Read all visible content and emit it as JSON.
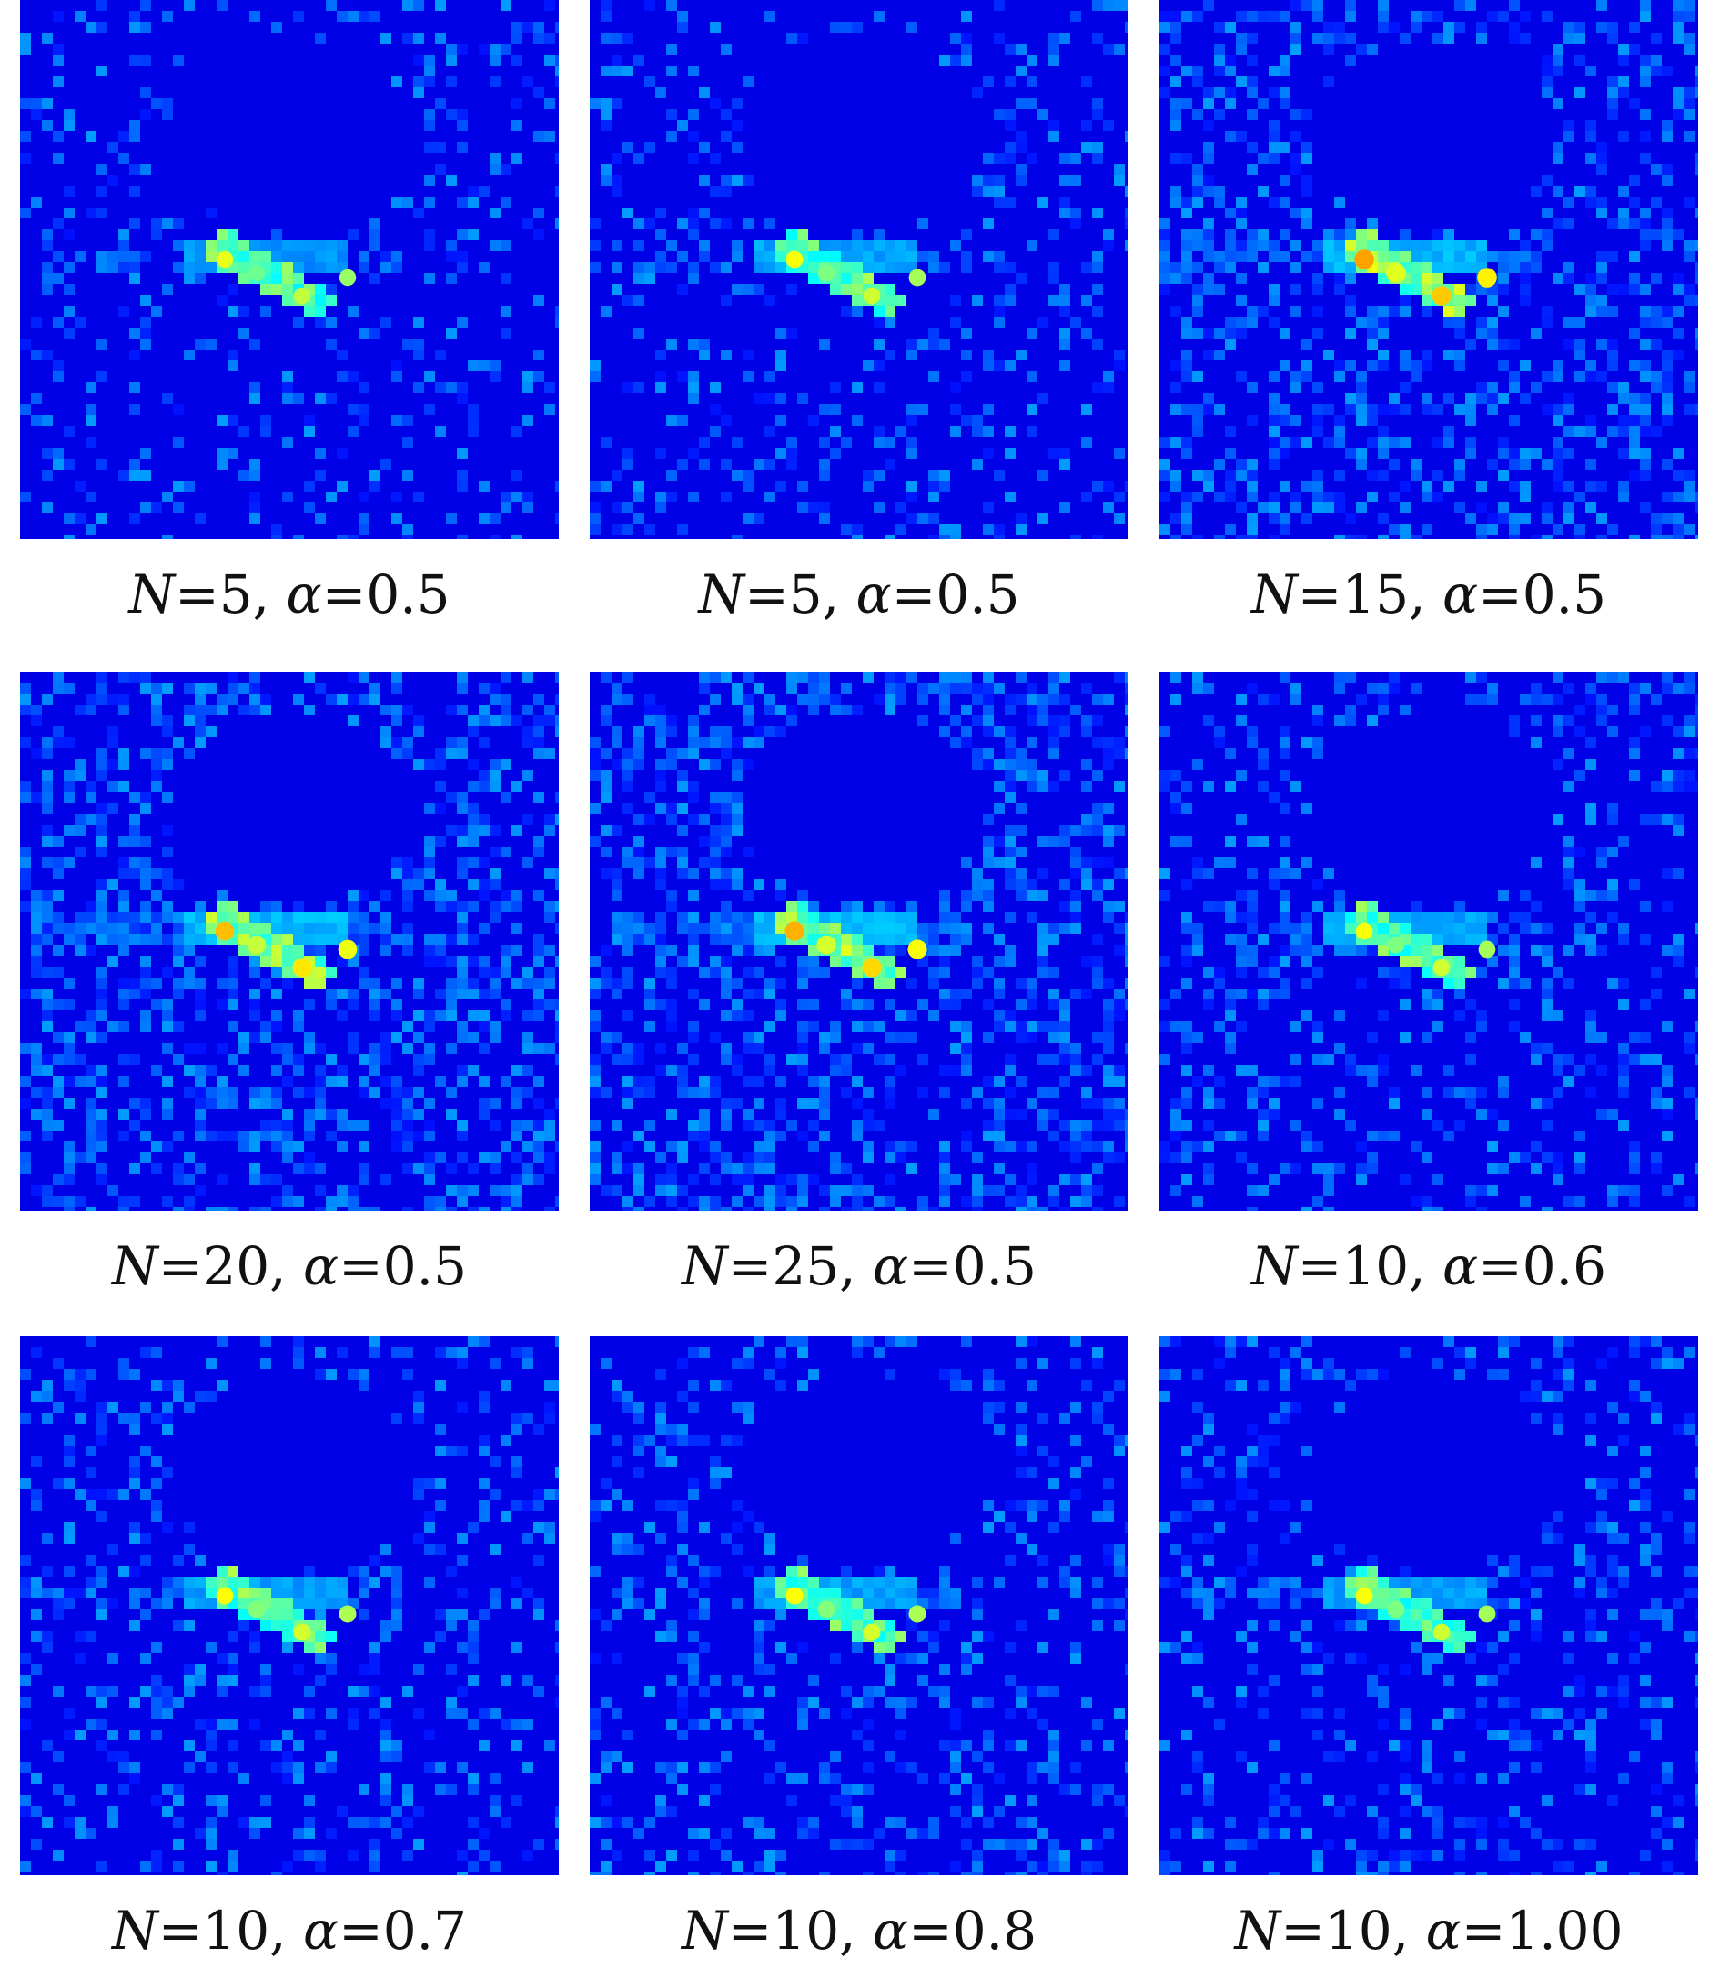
{
  "panels": [
    {
      "n_label": "N",
      "n_value": "5",
      "alpha_label": "α",
      "alpha_value": "0.5",
      "noise": 0.18,
      "stripe": 0.25,
      "hotspot": 0.55,
      "hole": 1
    },
    {
      "n_label": "N",
      "n_value": "5",
      "alpha_label": "α",
      "alpha_value": "0.5",
      "noise": 0.2,
      "stripe": 0.4,
      "hotspot": 0.6,
      "hole": 1
    },
    {
      "n_label": "N",
      "n_value": "15",
      "alpha_label": "α",
      "alpha_value": "0.5",
      "noise": 0.38,
      "stripe": 0.55,
      "hotspot": 0.95,
      "hole": 1
    },
    {
      "n_label": "N",
      "n_value": "20",
      "alpha_label": "α",
      "alpha_value": "0.5",
      "noise": 0.42,
      "stripe": 0.6,
      "hotspot": 0.85,
      "hole": 1
    },
    {
      "n_label": "N",
      "n_value": "25",
      "alpha_label": "α",
      "alpha_value": "0.5",
      "noise": 0.44,
      "stripe": 0.62,
      "hotspot": 0.9,
      "hole": 1
    },
    {
      "n_label": "N",
      "n_value": "10",
      "alpha_label": "α",
      "alpha_value": "0.6",
      "noise": 0.26,
      "stripe": 0.4,
      "hotspot": 0.6,
      "hole": 1
    },
    {
      "n_label": "N",
      "n_value": "10",
      "alpha_label": "α",
      "alpha_value": "0.7",
      "noise": 0.24,
      "stripe": 0.35,
      "hotspot": 0.62,
      "hole": 1
    },
    {
      "n_label": "N",
      "n_value": "10",
      "alpha_label": "α",
      "alpha_value": "0.8",
      "noise": 0.24,
      "stripe": 0.35,
      "hotspot": 0.62,
      "hole": 1
    },
    {
      "n_label": "N",
      "n_value": "10",
      "alpha_label": "α",
      "alpha_value": "1.00",
      "noise": 0.24,
      "stripe": 0.35,
      "hotspot": 0.6,
      "hole": 1
    }
  ]
}
